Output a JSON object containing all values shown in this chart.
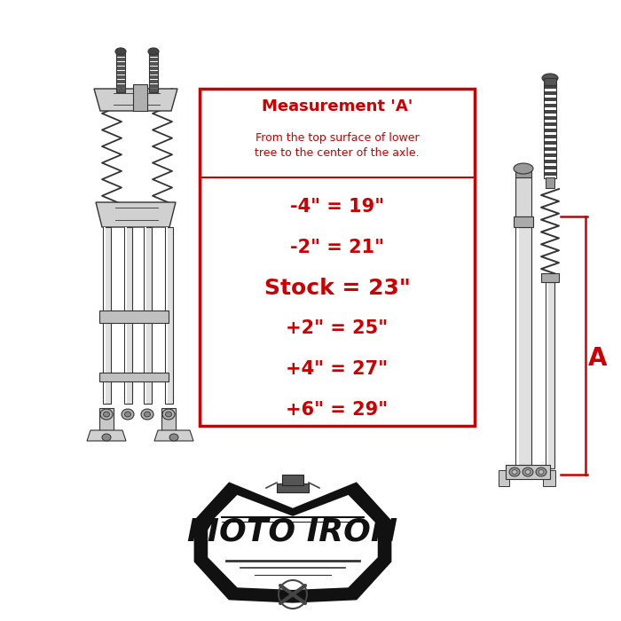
{
  "bg_color": "#ffffff",
  "box_color": "#cc0000",
  "text_color": "#cc0000",
  "title": "Measurement 'A'",
  "subtitle_line1": "From the top surface of lower",
  "subtitle_line2": "tree to the center of the axle.",
  "measurements": [
    "-4\" = 19\"",
    "-2\" = 21\"",
    "Stock = 23\"",
    "+2\" = 25\"",
    "+4\" = 27\"",
    "+6\" = 29\""
  ],
  "stock_index": 2,
  "label_A": "A",
  "title_fontsize": 13,
  "subtitle_fontsize": 9,
  "meas_fontsize": 15,
  "stock_fontsize": 18,
  "line_width": 2.0
}
